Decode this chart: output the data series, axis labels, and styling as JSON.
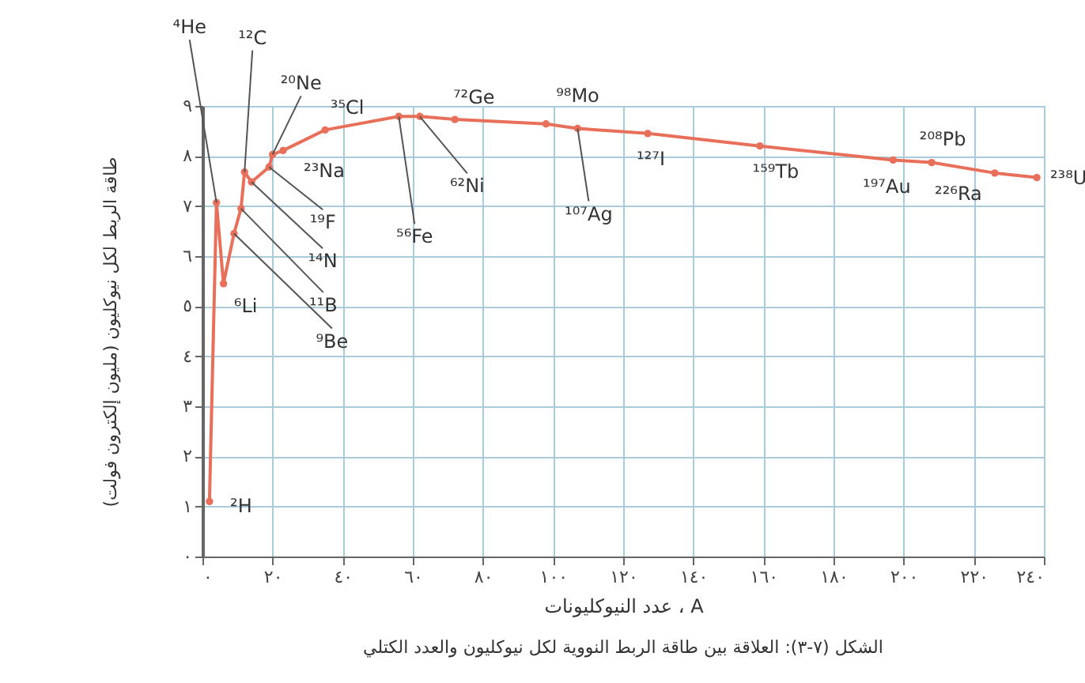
{
  "chart_data": {
    "type": "line",
    "xlabel": "عدد النيوكليونات ، A",
    "ylabel": "طاقة الربط لكل نيوكليون (مليون إلكترون فولت)",
    "x": [
      2,
      4,
      6,
      9,
      11,
      12,
      14,
      19,
      20,
      23,
      35,
      56,
      62,
      72,
      98,
      107,
      127,
      159,
      197,
      208,
      226,
      238
    ],
    "series": [
      {
        "color": "#e8705a",
        "values": [
          1.1,
          7.07,
          5.45,
          6.45,
          6.95,
          7.68,
          7.48,
          7.78,
          8.03,
          8.11,
          8.52,
          8.79,
          8.79,
          8.73,
          8.64,
          8.55,
          8.45,
          8.2,
          7.92,
          7.87,
          7.66,
          7.57
        ]
      }
    ],
    "xlim": [
      0,
      240
    ],
    "xticks": [
      {
        "value": 0,
        "label": "٠"
      },
      {
        "value": 20,
        "label": "٢٠"
      },
      {
        "value": 40,
        "label": "٤٠"
      },
      {
        "value": 60,
        "label": "٦٠"
      },
      {
        "value": 80,
        "label": "٨٠"
      },
      {
        "value": 100,
        "label": "١٠٠"
      },
      {
        "value": 120,
        "label": "١٢٠"
      },
      {
        "value": 140,
        "label": "١٤٠"
      },
      {
        "value": 160,
        "label": "١٦٠"
      },
      {
        "value": 180,
        "label": "١٨٠"
      },
      {
        "value": 200,
        "label": "٢٠٠"
      },
      {
        "value": 220,
        "label": "٢٢٠"
      },
      {
        "value": 240,
        "label": "٢٤٠"
      }
    ],
    "ylim": [
      0,
      9
    ],
    "yticks": [
      {
        "value": 0,
        "label": "٠"
      },
      {
        "value": 1,
        "label": "١"
      },
      {
        "value": 2,
        "label": "٢"
      },
      {
        "value": 3,
        "label": "٣"
      },
      {
        "value": 4,
        "label": "٤"
      },
      {
        "value": 5,
        "label": "٥"
      },
      {
        "value": 6,
        "label": "٦"
      },
      {
        "value": 7,
        "label": "٧"
      },
      {
        "value": 8,
        "label": "٨"
      },
      {
        "value": 9,
        "label": "٩"
      }
    ],
    "grid": true,
    "marker": "circle",
    "annotations": [
      {
        "text": "²H",
        "x": 2,
        "y": 1.1
      },
      {
        "text": "⁴He",
        "x": 4,
        "y": 7.07
      },
      {
        "text": "⁶Li",
        "x": 6,
        "y": 5.45
      },
      {
        "text": "⁹Be",
        "x": 9,
        "y": 6.45
      },
      {
        "text": "¹¹B",
        "x": 11,
        "y": 6.95
      },
      {
        "text": "¹²C",
        "x": 12,
        "y": 7.68
      },
      {
        "text": "¹⁴N",
        "x": 14,
        "y": 7.48
      },
      {
        "text": "¹⁹F",
        "x": 19,
        "y": 7.78
      },
      {
        "text": "²⁰Ne",
        "x": 20,
        "y": 8.03
      },
      {
        "text": "²³Na",
        "x": 23,
        "y": 8.11
      },
      {
        "text": "³⁵Cl",
        "x": 35,
        "y": 8.52
      },
      {
        "text": "⁵⁶Fe",
        "x": 56,
        "y": 8.79
      },
      {
        "text": "⁶²Ni",
        "x": 62,
        "y": 8.79
      },
      {
        "text": "⁷²Ge",
        "x": 72,
        "y": 8.73
      },
      {
        "text": "⁹⁸Mo",
        "x": 98,
        "y": 8.64
      },
      {
        "text": "¹⁰⁷Ag",
        "x": 107,
        "y": 8.55
      },
      {
        "text": "¹²⁷I",
        "x": 127,
        "y": 8.45
      },
      {
        "text": "¹⁵⁹Tb",
        "x": 159,
        "y": 8.2
      },
      {
        "text": "¹⁹⁷Au",
        "x": 197,
        "y": 7.92
      },
      {
        "text": "²⁰⁸Pb",
        "x": 208,
        "y": 7.87
      },
      {
        "text": "²²⁶Ra",
        "x": 226,
        "y": 7.66
      },
      {
        "text": "²³⁸U",
        "x": 238,
        "y": 7.57
      },
      "الشكل (٧-٣): العلاقة بين طاقة الربط النووية لكل نيوكليون والعدد الكتلي"
    ]
  }
}
